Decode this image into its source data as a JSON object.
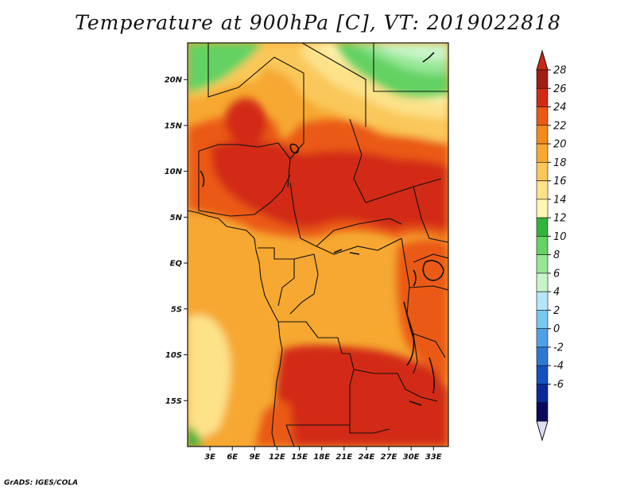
{
  "title": "Temperature at 900hPa [C], VT: 2019022818",
  "credit": "GrADS: IGES/COLA",
  "map": {
    "lon_range": [
      0,
      35
    ],
    "lat_range": [
      -20,
      24
    ],
    "lat_ticks": [
      {
        "value": 20,
        "label": "20N"
      },
      {
        "value": 15,
        "label": "15N"
      },
      {
        "value": 10,
        "label": "10N"
      },
      {
        "value": 5,
        "label": "5N"
      },
      {
        "value": 0,
        "label": "EQ"
      },
      {
        "value": -5,
        "label": "5S"
      },
      {
        "value": -10,
        "label": "10S"
      },
      {
        "value": -15,
        "label": "15S"
      }
    ],
    "lon_ticks": [
      {
        "value": 3,
        "label": "3E"
      },
      {
        "value": 6,
        "label": "6E"
      },
      {
        "value": 9,
        "label": "9E"
      },
      {
        "value": 12,
        "label": "12E"
      },
      {
        "value": 15,
        "label": "15E"
      },
      {
        "value": 18,
        "label": "18E"
      },
      {
        "value": 21,
        "label": "21E"
      },
      {
        "value": 24,
        "label": "24E"
      },
      {
        "value": 27,
        "label": "27E"
      },
      {
        "value": 30,
        "label": "30E"
      },
      {
        "value": 33,
        "label": "33E"
      }
    ]
  },
  "colorbar": {
    "levels": [
      {
        "label": "28",
        "color": "#a01e14"
      },
      {
        "label": "26",
        "color": "#d22a14"
      },
      {
        "label": "24",
        "color": "#ea5a14"
      },
      {
        "label": "22",
        "color": "#f28a1c"
      },
      {
        "label": "20",
        "color": "#f6a830"
      },
      {
        "label": "18",
        "color": "#fac85a"
      },
      {
        "label": "16",
        "color": "#fde28a"
      },
      {
        "label": "14",
        "color": "#fff6b4"
      },
      {
        "label": "12",
        "color": "#32b43c"
      },
      {
        "label": "10",
        "color": "#64d264"
      },
      {
        "label": "8",
        "color": "#96e696"
      },
      {
        "label": "6",
        "color": "#c8f5c8"
      },
      {
        "label": "4",
        "color": "#b4e6f8"
      },
      {
        "label": "2",
        "color": "#78c8f0"
      },
      {
        "label": "0",
        "color": "#50a0e6"
      },
      {
        "label": "-2",
        "color": "#2d78d2"
      },
      {
        "label": "-4",
        "color": "#1450be"
      },
      {
        "label": "-6",
        "color": "#0a2896"
      },
      {
        "label": "",
        "color": "#0a0a5a"
      }
    ],
    "upper_arrow_color": "#c82814",
    "lower_arrow_color": "#dcdcf5"
  }
}
